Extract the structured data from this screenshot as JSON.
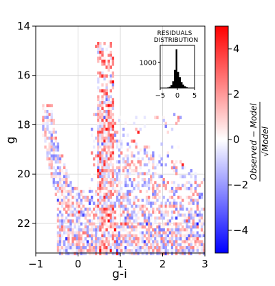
{
  "chart_data": [
    {
      "type": "heatmap",
      "title": "",
      "xlabel": "g-i",
      "ylabel": "g",
      "xlim": [
        -1,
        3
      ],
      "ylim": [
        23.2,
        14
      ],
      "y_inverted": true,
      "xticks": [
        -1,
        0,
        1,
        2,
        3
      ],
      "xtick_labels": [
        "−1",
        "0",
        "1",
        "2",
        "3"
      ],
      "yticks": [
        14,
        16,
        18,
        20,
        22
      ],
      "ytick_labels": [
        "14",
        "16",
        "18",
        "20",
        "22"
      ],
      "grid": true,
      "colormap": "bwr",
      "colors": {
        "low": "#0000ff",
        "mid": "#ffffff",
        "high": "#ff0000",
        "grid": "#d9d9d9"
      },
      "colorbar": {
        "range": [
          -5,
          5
        ],
        "ticks": [
          4,
          2,
          0,
          -2,
          -4
        ],
        "tick_labels": [
          "4",
          "2",
          "0",
          "−2",
          "−4"
        ],
        "label_parts": [
          "Observed − Model",
          "√Model"
        ]
      },
      "bin_size": {
        "x": 0.05,
        "y": 0.12
      },
      "features": {
        "main_sequence_turnoff": {
          "x_range": [
            0.45,
            0.85
          ],
          "y_range": [
            14.6,
            23.2
          ]
        },
        "blue_sequence": {
          "x_range": [
            -0.8,
            0.3
          ],
          "y_range": [
            17.1,
            23.2
          ]
        },
        "red_disk_population": {
          "x_range": [
            0.6,
            3.0
          ],
          "y_range": [
            18.0,
            23.2
          ]
        }
      }
    },
    {
      "type": "bar",
      "title_lines": [
        "RESIDUALS",
        "DISTRIBUTION"
      ],
      "xlim": [
        -5,
        5
      ],
      "ylim": [
        0,
        1650
      ],
      "xticks": [
        -5,
        0,
        5
      ],
      "xtick_labels": [
        "−5",
        "0",
        "5"
      ],
      "yticks": [
        1000
      ],
      "ytick_labels": [
        "1000"
      ],
      "bar_color": "#000000",
      "bin_centers": [
        -3.25,
        -2.75,
        -2.25,
        -1.75,
        -1.25,
        -0.75,
        -0.25,
        0.25,
        0.75,
        1.25,
        1.75,
        2.25,
        2.75,
        3.25
      ],
      "values": [
        10,
        20,
        45,
        110,
        260,
        700,
        1500,
        620,
        420,
        230,
        130,
        70,
        30,
        10
      ]
    }
  ]
}
